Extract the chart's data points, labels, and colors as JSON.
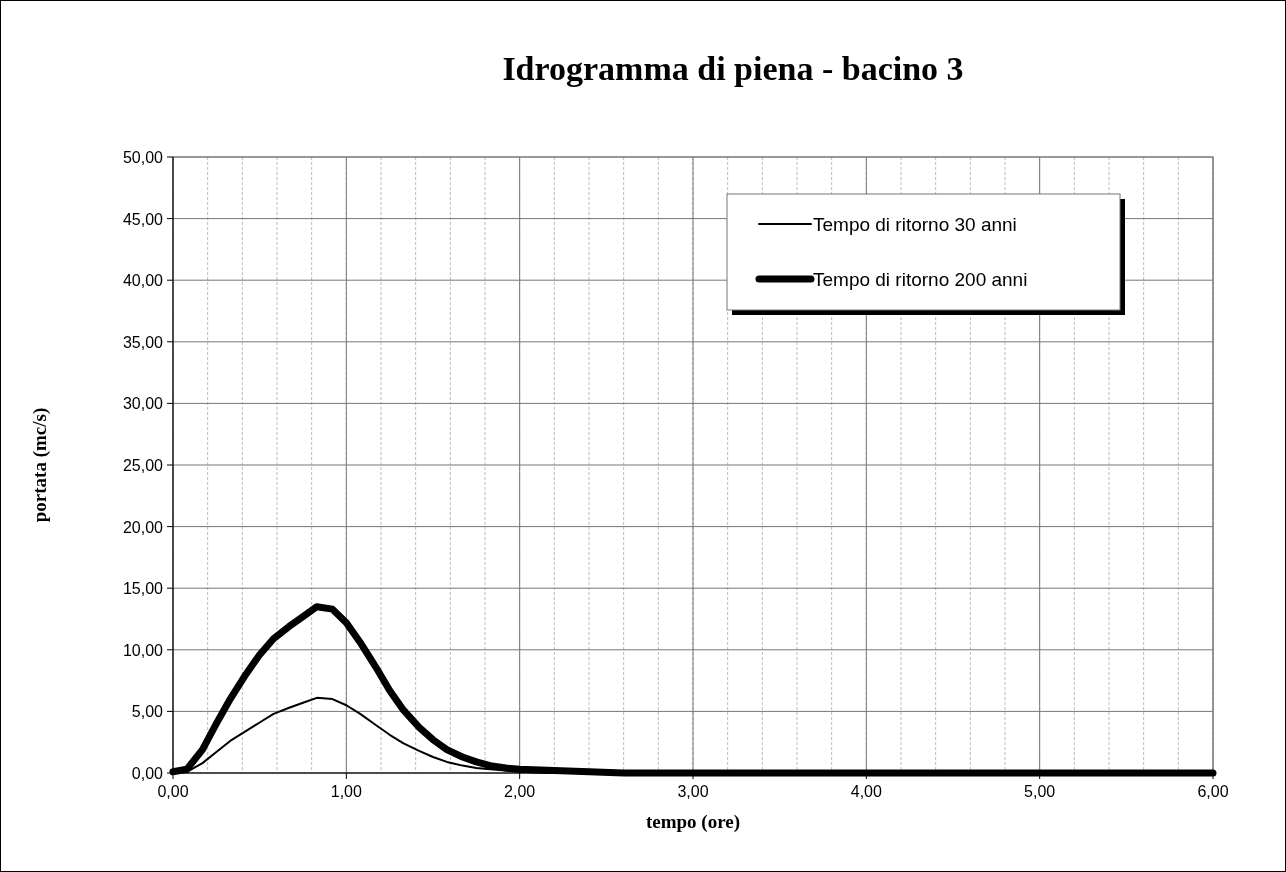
{
  "chart_data": {
    "type": "line",
    "title": "Idrogramma di piena - bacino 3",
    "xlabel": "tempo (ore)",
    "ylabel": "portata (mc/s)",
    "x": [
      0,
      0.08,
      0.17,
      0.25,
      0.33,
      0.42,
      0.5,
      0.58,
      0.67,
      0.75,
      0.83,
      0.92,
      1.0,
      1.08,
      1.17,
      1.25,
      1.33,
      1.42,
      1.5,
      1.58,
      1.67,
      1.75,
      1.83,
      1.92,
      2.0,
      2.2,
      2.4,
      2.6,
      3,
      4,
      5,
      6
    ],
    "series": [
      {
        "name": "Tempo di ritorno 30 anni",
        "color": "#000000",
        "values": [
          0,
          0.1,
          0.8,
          1.7,
          2.6,
          3.4,
          4.1,
          4.8,
          5.3,
          5.7,
          6.1,
          6.0,
          5.5,
          4.8,
          3.9,
          3.1,
          2.4,
          1.8,
          1.3,
          0.9,
          0.6,
          0.4,
          0.3,
          0.2,
          0.1,
          0,
          0,
          0,
          0,
          0,
          0,
          0
        ]
      },
      {
        "name": "Tempo di ritorno 200 anni",
        "color": "#000000",
        "values": [
          0.1,
          0.3,
          1.9,
          4.0,
          6.0,
          8.0,
          9.6,
          10.9,
          11.9,
          12.7,
          13.5,
          13.3,
          12.2,
          10.6,
          8.6,
          6.7,
          5.1,
          3.7,
          2.7,
          1.9,
          1.3,
          0.9,
          0.6,
          0.4,
          0.3,
          0.2,
          0.1,
          0,
          0,
          0,
          0,
          0
        ]
      }
    ],
    "xlim": [
      0,
      6
    ],
    "ylim": [
      0,
      50
    ],
    "xticks": [
      {
        "value": 0,
        "label": "0,00"
      },
      {
        "value": 1,
        "label": "1,00"
      },
      {
        "value": 2,
        "label": "2,00"
      },
      {
        "value": 3,
        "label": "3,00"
      },
      {
        "value": 4,
        "label": "4,00"
      },
      {
        "value": 5,
        "label": "5,00"
      },
      {
        "value": 6,
        "label": "6,00"
      }
    ],
    "yticks": [
      {
        "value": 0,
        "label": "0,00"
      },
      {
        "value": 5,
        "label": "5,00"
      },
      {
        "value": 10,
        "label": "10,00"
      },
      {
        "value": 15,
        "label": "15,00"
      },
      {
        "value": 20,
        "label": "20,00"
      },
      {
        "value": 25,
        "label": "25,00"
      },
      {
        "value": 30,
        "label": "30,00"
      },
      {
        "value": 35,
        "label": "35,00"
      },
      {
        "value": 40,
        "label": "40,00"
      },
      {
        "value": 45,
        "label": "45,00"
      },
      {
        "value": 50,
        "label": "50,00"
      }
    ],
    "grid": true,
    "legend": "top right",
    "line_style": "solid"
  }
}
